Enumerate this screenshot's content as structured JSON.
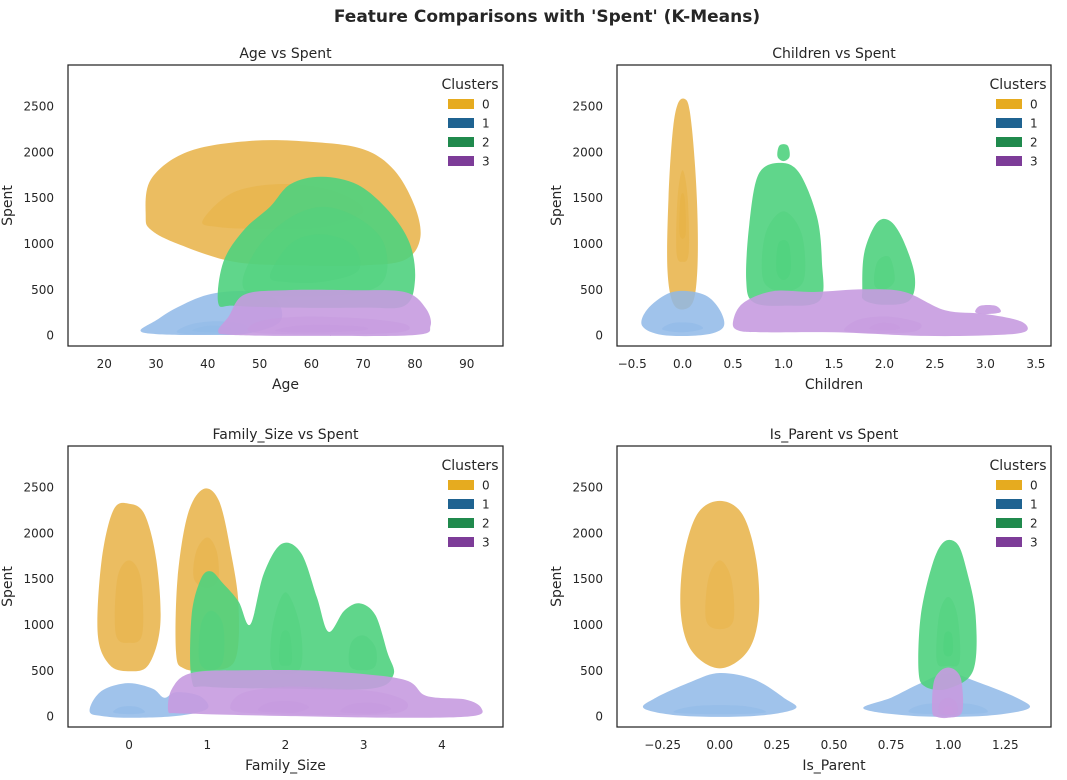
{
  "figure": {
    "title": "Feature Comparisons with 'Spent' (K-Means)"
  },
  "colors": {
    "cluster_0": "#e6ab1f",
    "cluster_1": "#1f6391",
    "cluster_2": "#208a4d",
    "cluster_3": "#7d3c98",
    "kde_0": "#e8b245",
    "kde_1": "#8fb9e8",
    "kde_2": "#4fd17e",
    "kde_3": "#c79be0"
  },
  "chart_data": [
    {
      "type": "kde",
      "title": "Age vs Spent",
      "xlabel": "Age",
      "ylabel": "Spent",
      "xlim": [
        13,
        97
      ],
      "ylim": [
        -120,
        2950
      ],
      "x_ticks": [
        20,
        30,
        40,
        50,
        60,
        70,
        80,
        90
      ],
      "x_tick_labels": [
        "20",
        "30",
        "40",
        "50",
        "60",
        "70",
        "80",
        "90"
      ],
      "y_ticks": [
        0,
        500,
        1000,
        1500,
        2000,
        2500
      ],
      "y_tick_labels": [
        "0",
        "500",
        "1000",
        "1500",
        "2000",
        "2500"
      ],
      "legend": {
        "title": "Clusters",
        "labels": [
          "0",
          "1",
          "2",
          "3"
        ],
        "position": "upper right"
      },
      "series": [
        {
          "name": "0",
          "x_range": [
            28,
            81
          ],
          "y_range": [
            800,
            2150
          ],
          "peak": [
            52,
            1400
          ]
        },
        {
          "name": "1",
          "x_range": [
            27,
            54
          ],
          "y_range": [
            0,
            480
          ],
          "peak": [
            40,
            60
          ]
        },
        {
          "name": "2",
          "x_range": [
            42,
            80
          ],
          "y_range": [
            300,
            1750
          ],
          "peak": [
            60,
            750
          ]
        },
        {
          "name": "3",
          "x_range": [
            42,
            83
          ],
          "y_range": [
            0,
            500
          ],
          "peak": [
            58,
            70
          ]
        }
      ]
    },
    {
      "type": "kde",
      "title": "Children vs Spent",
      "xlabel": "Children",
      "ylabel": "Spent",
      "xlim": [
        -0.65,
        3.65
      ],
      "ylim": [
        -120,
        2950
      ],
      "x_ticks": [
        -0.5,
        0.0,
        0.5,
        1.0,
        1.5,
        2.0,
        2.5,
        3.0,
        3.5
      ],
      "x_tick_labels": [
        "−0.5",
        "0.0",
        "0.5",
        "1.0",
        "1.5",
        "2.0",
        "2.5",
        "3.0",
        "3.5"
      ],
      "y_ticks": [
        0,
        500,
        1000,
        1500,
        2000,
        2500
      ],
      "y_tick_labels": [
        "0",
        "500",
        "1000",
        "1500",
        "2000",
        "2500"
      ],
      "legend": {
        "title": "Clusters",
        "labels": [
          "0",
          "1",
          "2",
          "3"
        ],
        "position": "upper right"
      },
      "series": [
        {
          "name": "0",
          "x_range": [
            -0.15,
            0.15
          ],
          "y_range": [
            300,
            2580
          ],
          "peak": [
            0.0,
            1300
          ]
        },
        {
          "name": "1",
          "x_range": [
            -0.4,
            0.4
          ],
          "y_range": [
            0,
            480
          ],
          "peak": [
            0.0,
            60
          ]
        },
        {
          "name": "2",
          "x_range": [
            0.63,
            2.3
          ],
          "y_range": [
            300,
            1880
          ],
          "peak": [
            1.0,
            850
          ]
        },
        {
          "name": "3",
          "x_range": [
            0.5,
            3.4
          ],
          "y_range": [
            0,
            500
          ],
          "peak": [
            2.0,
            80
          ]
        }
      ]
    },
    {
      "type": "kde",
      "title": "Family_Size vs Spent",
      "xlabel": "Family_Size",
      "ylabel": "Spent",
      "xlim": [
        -0.78,
        4.78
      ],
      "ylim": [
        -120,
        2950
      ],
      "x_ticks": [
        0,
        1,
        2,
        3,
        4
      ],
      "x_tick_labels": [
        "0",
        "1",
        "2",
        "3",
        "4"
      ],
      "y_ticks": [
        0,
        500,
        1000,
        1500,
        2000,
        2500
      ],
      "y_tick_labels": [
        "0",
        "500",
        "1000",
        "1500",
        "2000",
        "2500"
      ],
      "legend": {
        "title": "Clusters",
        "labels": [
          "0",
          "1",
          "2",
          "3"
        ],
        "position": "upper right"
      },
      "series": [
        {
          "name": "0",
          "x_range": [
            -0.4,
            1.4
          ],
          "y_range": [
            500,
            2480
          ],
          "peak": [
            0.0,
            1300
          ]
        },
        {
          "name": "1",
          "x_range": [
            -0.5,
            1.0
          ],
          "y_range": [
            0,
            360
          ],
          "peak": [
            0.0,
            60
          ]
        },
        {
          "name": "2",
          "x_range": [
            0.8,
            3.4
          ],
          "y_range": [
            300,
            1900
          ],
          "peak": [
            2.0,
            750
          ]
        },
        {
          "name": "3",
          "x_range": [
            0.5,
            4.5
          ],
          "y_range": [
            0,
            500
          ],
          "peak": [
            2.0,
            80
          ]
        }
      ]
    },
    {
      "type": "kde",
      "title": "Is_Parent vs Spent",
      "xlabel": "Is_Parent",
      "ylabel": "Spent",
      "xlim": [
        -0.45,
        1.45
      ],
      "ylim": [
        -120,
        2950
      ],
      "x_ticks": [
        -0.25,
        0.0,
        0.25,
        0.5,
        0.75,
        1.0,
        1.25
      ],
      "x_tick_labels": [
        "−0.25",
        "0.00",
        "0.25",
        "0.50",
        "0.75",
        "1.00",
        "1.25"
      ],
      "y_ticks": [
        0,
        500,
        1000,
        1500,
        2000,
        2500
      ],
      "y_tick_labels": [
        "0",
        "500",
        "1000",
        "1500",
        "2000",
        "2500"
      ],
      "legend": {
        "title": "Clusters",
        "labels": [
          "0",
          "1",
          "2",
          "3"
        ],
        "position": "upper right"
      },
      "series": [
        {
          "name": "0",
          "x_range": [
            -0.17,
            0.17
          ],
          "y_range": [
            500,
            2350
          ],
          "peak": [
            0.0,
            1350
          ]
        },
        {
          "name": "1",
          "x_range": [
            -0.33,
            1.35
          ],
          "y_range": [
            0,
            470
          ],
          "peak": [
            1.0,
            60
          ]
        },
        {
          "name": "2",
          "x_range": [
            0.87,
            1.12
          ],
          "y_range": [
            300,
            1920
          ],
          "peak": [
            1.0,
            950
          ]
        },
        {
          "name": "3",
          "x_range": [
            0.93,
            1.06
          ],
          "y_range": [
            0,
            530
          ],
          "peak": [
            1.0,
            70
          ]
        }
      ]
    }
  ]
}
